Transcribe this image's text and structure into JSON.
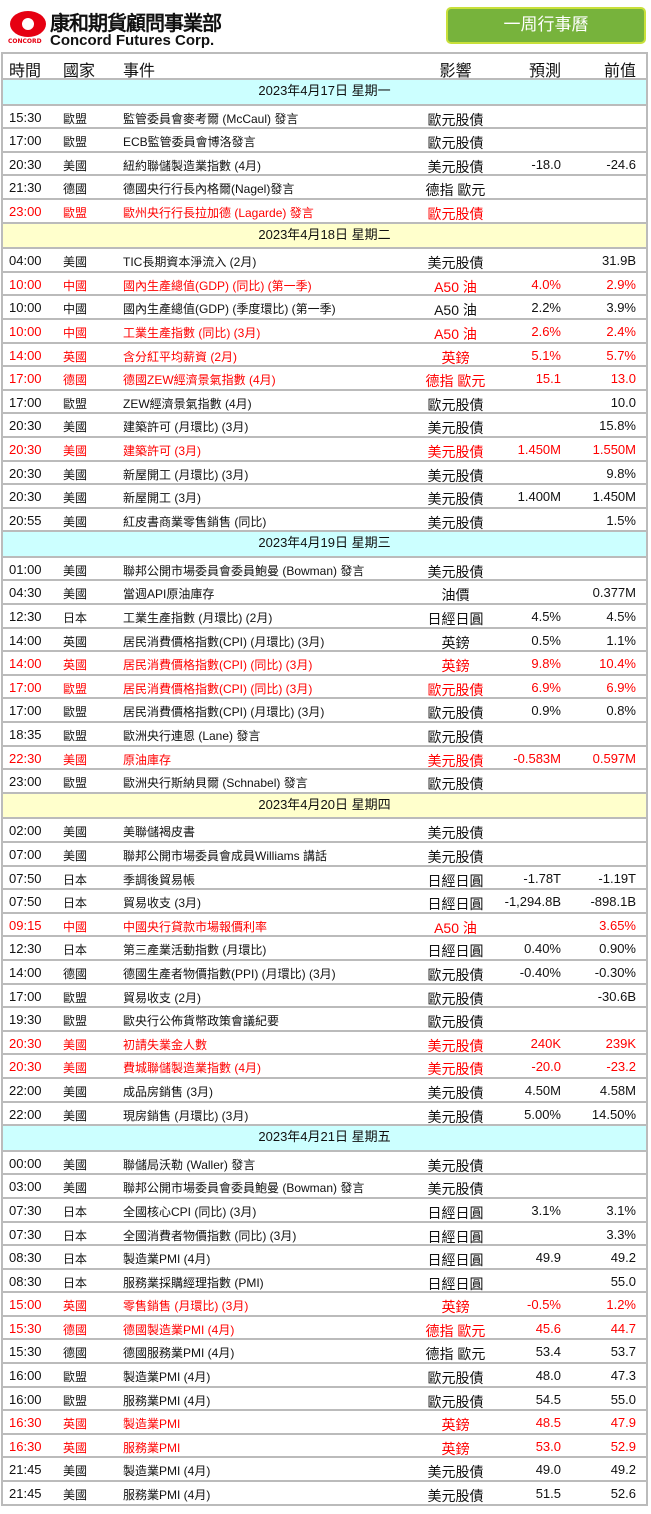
{
  "brand": {
    "name_cn": "康和期貨顧問事業部",
    "name_en": "Concord Futures Corp.",
    "small": "CONCORD"
  },
  "title_button": "一周行事曆",
  "columns": [
    "時間",
    "國家",
    "事件",
    "影響",
    "預測",
    "前值"
  ],
  "days": [
    {
      "date": "2023年4月17日  星期一",
      "rows": [
        [
          "15:30",
          "歐盟",
          "監管委員會麥考爾 (McCaul) 發言",
          "歐元股債",
          "",
          "",
          0
        ],
        [
          "17:00",
          "歐盟",
          "ECB監管委員會博洛發言",
          "歐元股債",
          "",
          "",
          0
        ],
        [
          "20:30",
          "美國",
          "紐約聯儲製造業指數 (4月)",
          "美元股債",
          "-18.0",
          "-24.6",
          0
        ],
        [
          "21:30",
          "德國",
          "德國央行行長內格爾(Nagel)發言",
          "德指 歐元",
          "",
          "",
          0
        ],
        [
          "23:00",
          "歐盟",
          "歐州央行行長拉加德 (Lagarde) 發言",
          "歐元股債",
          "",
          "",
          1
        ]
      ]
    },
    {
      "date": "2023年4月18日  星期二",
      "rows": [
        [
          "04:00",
          "美國",
          "TIC長期資本淨流入 (2月)",
          "美元股債",
          "",
          "31.9B",
          0
        ],
        [
          "10:00",
          "中國",
          "國內生產總值(GDP) (同比) (第一季)",
          "A50 油",
          "4.0%",
          "2.9%",
          1
        ],
        [
          "10:00",
          "中國",
          "國內生產總值(GDP) (季度環比) (第一季)",
          "A50 油",
          "2.2%",
          "3.9%",
          0
        ],
        [
          "10:00",
          "中國",
          "工業生產指數 (同比) (3月)",
          "A50 油",
          "2.6%",
          "2.4%",
          1
        ],
        [
          "14:00",
          "英國",
          "含分紅平均薪資 (2月)",
          "英鎊",
          "5.1%",
          "5.7%",
          1
        ],
        [
          "17:00",
          "德國",
          "德國ZEW經濟景氣指數 (4月)",
          "德指 歐元",
          "15.1",
          "13.0",
          1
        ],
        [
          "17:00",
          "歐盟",
          "ZEW經濟景氣指數 (4月)",
          "歐元股債",
          "",
          "10.0",
          0
        ],
        [
          "20:30",
          "美國",
          "建築許可 (月環比) (3月)",
          "美元股債",
          "",
          "15.8%",
          0
        ],
        [
          "20:30",
          "美國",
          "建築許可 (3月)",
          "美元股債",
          "1.450M",
          "1.550M",
          1
        ],
        [
          "20:30",
          "美國",
          "新屋開工 (月環比) (3月)",
          "美元股債",
          "",
          "9.8%",
          0
        ],
        [
          "20:30",
          "美國",
          "新屋開工 (3月)",
          "美元股債",
          "1.400M",
          "1.450M",
          0
        ],
        [
          "20:55",
          "美國",
          "紅皮書商業零售銷售 (同比)",
          "美元股債",
          "",
          "1.5%",
          0
        ]
      ]
    },
    {
      "date": "2023年4月19日  星期三",
      "rows": [
        [
          "01:00",
          "美國",
          "聯邦公開市場委員會委員鮑曼 (Bowman) 發言",
          "美元股債",
          "",
          "",
          0
        ],
        [
          "04:30",
          "美國",
          "當週API原油庫存",
          "油價",
          "",
          "0.377M",
          0
        ],
        [
          "12:30",
          "日本",
          "工業生產指數 (月環比) (2月)",
          "日經日圓",
          "4.5%",
          "4.5%",
          0
        ],
        [
          "14:00",
          "英國",
          "居民消費價格指數(CPI) (月環比) (3月)",
          "英鎊",
          "0.5%",
          "1.1%",
          0
        ],
        [
          "14:00",
          "英國",
          "居民消費價格指數(CPI) (同比) (3月)",
          "英鎊",
          "9.8%",
          "10.4%",
          1
        ],
        [
          "17:00",
          "歐盟",
          "居民消費價格指數(CPI) (同比) (3月)",
          "歐元股債",
          "6.9%",
          "6.9%",
          1
        ],
        [
          "17:00",
          "歐盟",
          "居民消費價格指數(CPI) (月環比) (3月)",
          "歐元股債",
          "0.9%",
          "0.8%",
          0
        ],
        [
          "18:35",
          "歐盟",
          "歐洲央行連恩 (Lane) 發言",
          "歐元股債",
          "",
          "",
          0
        ],
        [
          "22:30",
          "美國",
          "原油庫存",
          "美元股債",
          "-0.583M",
          "0.597M",
          1
        ],
        [
          "23:00",
          "歐盟",
          "歐洲央行斯納貝爾 (Schnabel) 發言",
          "歐元股債",
          "",
          "",
          0
        ]
      ]
    },
    {
      "date": "2023年4月20日  星期四",
      "rows": [
        [
          "02:00",
          "美國",
          "美聯儲褐皮書",
          "美元股債",
          "",
          "",
          0
        ],
        [
          "07:00",
          "美國",
          "聯邦公開市場委員會成員Williams 講話",
          "美元股債",
          "",
          "",
          0
        ],
        [
          "07:50",
          "日本",
          "季調後貿易帳",
          "日經日圓",
          "-1.78T",
          "-1.19T",
          0
        ],
        [
          "07:50",
          "日本",
          "貿易收支 (3月)",
          "日經日圓",
          "-1,294.8B",
          "-898.1B",
          0
        ],
        [
          "09:15",
          "中國",
          "中國央行貸款市場報價利率",
          "A50 油",
          "",
          "3.65%",
          1
        ],
        [
          "12:30",
          "日本",
          "第三產業活動指數 (月環比)",
          "日經日圓",
          "0.40%",
          "0.90%",
          0
        ],
        [
          "14:00",
          "德國",
          "德國生產者物價指數(PPI) (月環比) (3月)",
          "歐元股債",
          "-0.40%",
          "-0.30%",
          0
        ],
        [
          "17:00",
          "歐盟",
          "貿易收支 (2月)",
          "歐元股債",
          "",
          "-30.6B",
          0
        ],
        [
          "19:30",
          "歐盟",
          "歐央行公佈貨幣政策會議紀要",
          "歐元股債",
          "",
          "",
          0
        ],
        [
          "20:30",
          "美國",
          "初請失業金人數",
          "美元股債",
          "240K",
          "239K",
          1
        ],
        [
          "20:30",
          "美國",
          "費城聯儲製造業指數 (4月)",
          "美元股債",
          "-20.0",
          "-23.2",
          1
        ],
        [
          "22:00",
          "美國",
          "成品房銷售 (3月)",
          "美元股債",
          "4.50M",
          "4.58M",
          0
        ],
        [
          "22:00",
          "美國",
          "現房銷售 (月環比) (3月)",
          "美元股債",
          "5.00%",
          "14.50%",
          0
        ]
      ]
    },
    {
      "date": "2023年4月21日  星期五",
      "rows": [
        [
          "00:00",
          "美國",
          "聯儲局沃勒 (Waller) 發言",
          "美元股債",
          "",
          "",
          0
        ],
        [
          "03:00",
          "美國",
          "聯邦公開市場委員會委員鮑曼 (Bowman) 發言",
          "美元股債",
          "",
          "",
          0
        ],
        [
          "07:30",
          "日本",
          "全國核心CPI (同比) (3月)",
          "日經日圓",
          "3.1%",
          "3.1%",
          0
        ],
        [
          "07:30",
          "日本",
          "全國消費者物價指數 (同比) (3月)",
          "日經日圓",
          "",
          "3.3%",
          0
        ],
        [
          "08:30",
          "日本",
          "製造業PMI (4月)",
          "日經日圓",
          "49.9",
          "49.2",
          0
        ],
        [
          "08:30",
          "日本",
          "服務業採購經理指數 (PMI)",
          "日經日圓",
          "",
          "55.0",
          0
        ],
        [
          "15:00",
          "英國",
          "零售銷售 (月環比) (3月)",
          "英鎊",
          "-0.5%",
          "1.2%",
          1
        ],
        [
          "15:30",
          "德國",
          "德國製造業PMI (4月)",
          "德指 歐元",
          "45.6",
          "44.7",
          1
        ],
        [
          "15:30",
          "德國",
          "德國服務業PMI (4月)",
          "德指 歐元",
          "53.4",
          "53.7",
          0
        ],
        [
          "16:00",
          "歐盟",
          "製造業PMI (4月)",
          "歐元股債",
          "48.0",
          "47.3",
          0
        ],
        [
          "16:00",
          "歐盟",
          "服務業PMI (4月)",
          "歐元股債",
          "54.5",
          "55.0",
          0
        ],
        [
          "16:30",
          "英國",
          "製造業PMI",
          "英鎊",
          "48.5",
          "47.9",
          1
        ],
        [
          "16:30",
          "英國",
          "服務業PMI",
          "英鎊",
          "53.0",
          "52.9",
          1
        ],
        [
          "21:45",
          "美國",
          "製造業PMI (4月)",
          "美元股債",
          "49.0",
          "49.2",
          0
        ],
        [
          "21:45",
          "美國",
          "服務業PMI (4月)",
          "美元股債",
          "51.5",
          "52.6",
          0
        ]
      ]
    }
  ]
}
